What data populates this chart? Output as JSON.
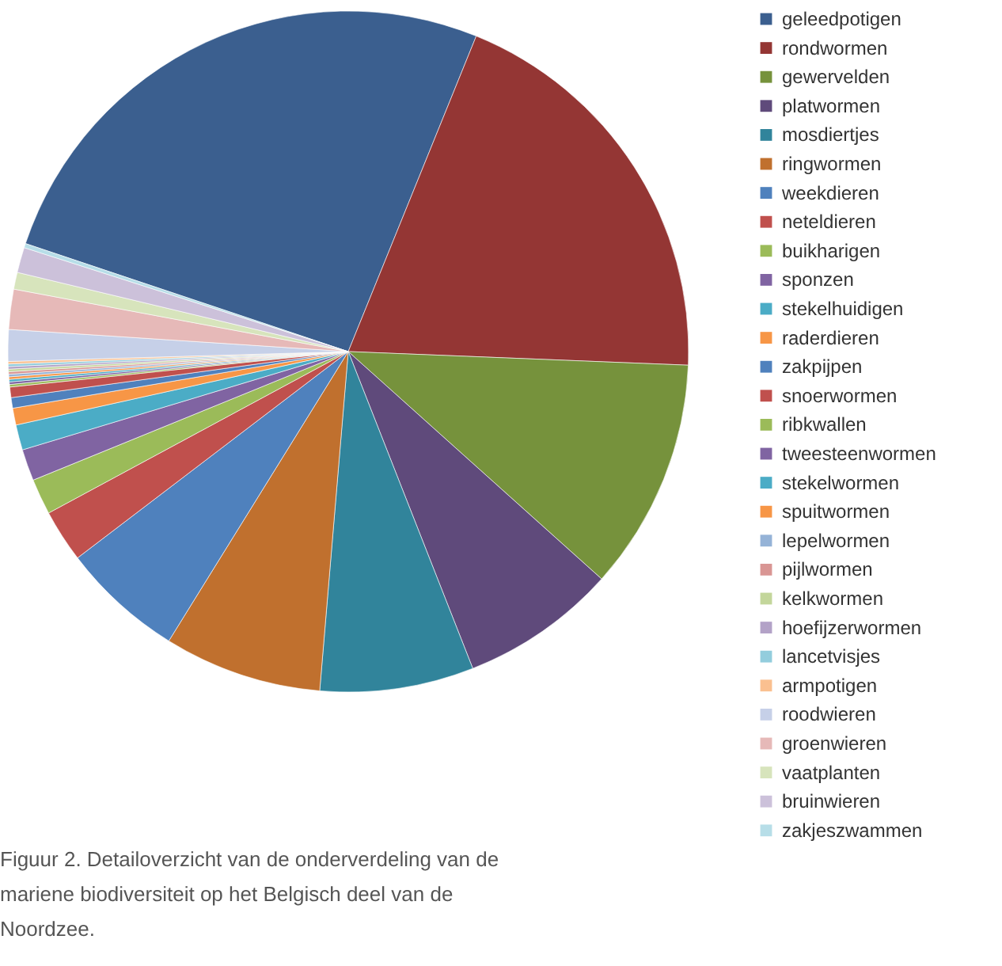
{
  "chart_data": {
    "type": "pie",
    "categories": [
      "geleedpotigen",
      "rondwormen",
      "gewervelden",
      "platwormen",
      "mosdiertjes",
      "ringwormen",
      "weekdieren",
      "neteldieren",
      "buikharigen",
      "sponzen",
      "stekelhuidigen",
      "raderdieren",
      "zakpijpen",
      "snoerwormen",
      "ribkwallen",
      "tweesteenwormen",
      "stekelwormen",
      "spuitwormen",
      "lepelwormen",
      "pijlwormen",
      "kelkwormen",
      "hoefijzerwormen",
      "lancetvisjes",
      "armpotigen",
      "roodwieren",
      "groenwieren",
      "vaatplanten",
      "bruinwieren",
      "zakjeszwammen"
    ],
    "values": [
      26.0,
      19.5,
      11.0,
      7.4,
      7.3,
      7.5,
      5.8,
      2.5,
      1.7,
      1.5,
      1.2,
      0.8,
      0.5,
      0.5,
      0.12,
      0.12,
      0.12,
      0.12,
      0.12,
      0.12,
      0.12,
      0.12,
      0.12,
      0.12,
      1.5,
      1.9,
      0.8,
      1.2,
      0.2
    ],
    "colors": [
      "#3b5f8f",
      "#943634",
      "#76923c",
      "#5f4a7b",
      "#31849b",
      "#c0702e",
      "#4f81bd",
      "#c0504d",
      "#9bbb59",
      "#8064a2",
      "#4bacc6",
      "#f79646",
      "#4f81bd",
      "#c0504d",
      "#9bbb59",
      "#8064a2",
      "#4bacc6",
      "#f79646",
      "#95b3d7",
      "#d99694",
      "#c3d69b",
      "#b3a2c7",
      "#93cddd",
      "#fac090",
      "#c6d0e8",
      "#e6b9b8",
      "#d7e4bc",
      "#ccc1da",
      "#b7dee8"
    ],
    "legend": "right",
    "annotations": [
      "Figuur 2. Detailoverzicht van de onderverdeling van de mariene biodiversiteit op het Belgisch deel van de Noordzee."
    ]
  }
}
